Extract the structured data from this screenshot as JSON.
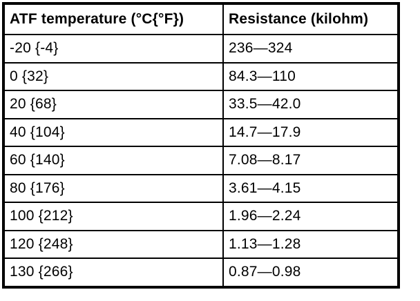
{
  "table": {
    "columns": [
      "ATF temperature (°C{°F})",
      "Resistance (kilohm)"
    ],
    "rows": [
      [
        "-20 {-4}",
        "236—324"
      ],
      [
        "0 {32}",
        "84.3—110"
      ],
      [
        "20 {68}",
        "33.5—42.0"
      ],
      [
        "40 {104}",
        "14.7—17.9"
      ],
      [
        "60 {140}",
        "7.08—8.17"
      ],
      [
        "80 {176}",
        "3.61—4.15"
      ],
      [
        "100 {212}",
        "1.96—2.24"
      ],
      [
        "120 {248}",
        "1.13—1.28"
      ],
      [
        "130 {266}",
        "0.87—0.98"
      ]
    ],
    "colors": {
      "text": "#000000",
      "border": "#000000",
      "background": "#ffffff"
    }
  }
}
